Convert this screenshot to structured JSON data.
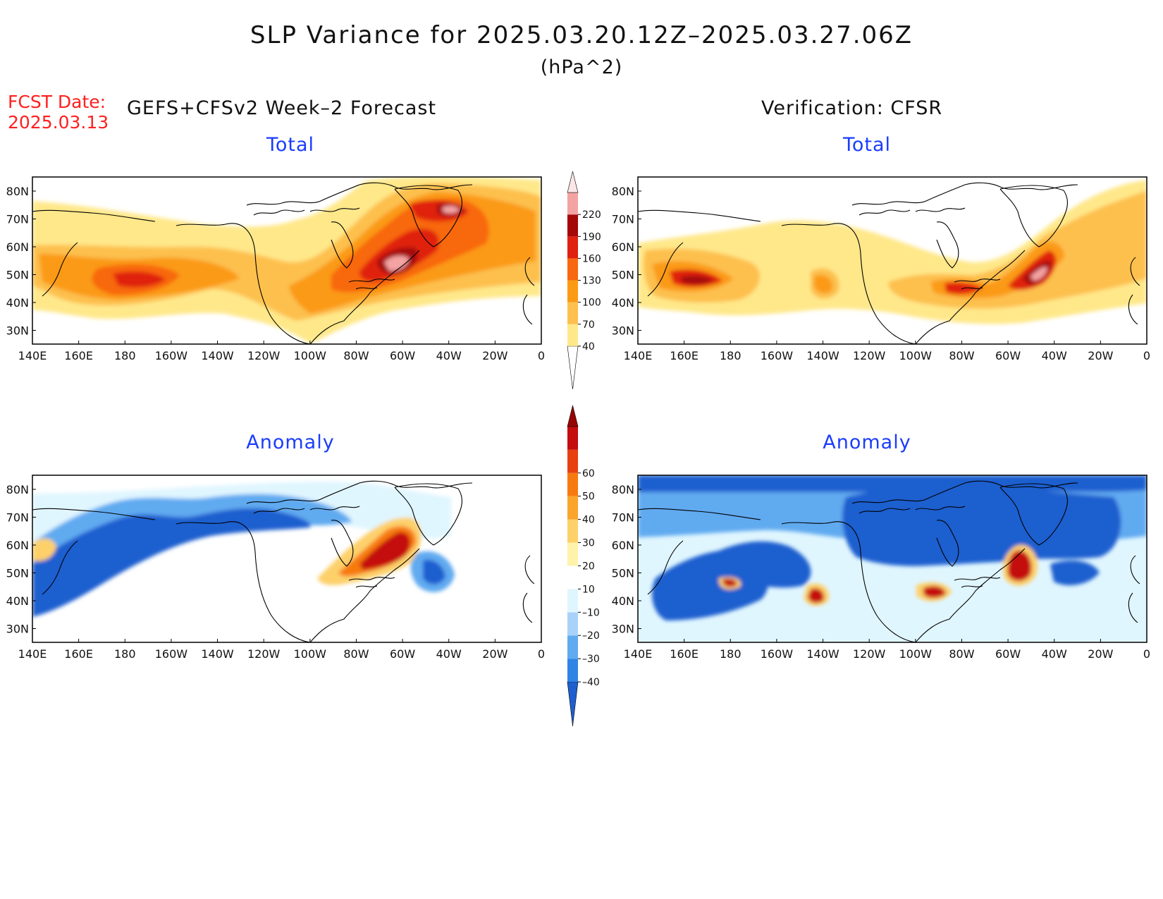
{
  "title": "SLP Variance for 2025.03.20.12Z–2025.03.27.06Z",
  "units": "(hPa^2)",
  "fcst_label": "FCST Date:",
  "fcst_date": "2025.03.13",
  "left_header": "GEFS+CFSv2 Week–2 Forecast",
  "right_header": "Verification: CFSR",
  "panels": {
    "forecast_total": {
      "title": "Total"
    },
    "verification_total": {
      "title": "Total"
    },
    "forecast_anomaly": {
      "title": "Anomaly"
    },
    "verification_anomaly": {
      "title": "Anomaly"
    }
  },
  "lat_labels": [
    "80N",
    "70N",
    "60N",
    "50N",
    "40N",
    "30N"
  ],
  "lon_labels": [
    "140E",
    "160E",
    "180",
    "160W",
    "140W",
    "120W",
    "100W",
    "80W",
    "60W",
    "40W",
    "20W",
    "0"
  ],
  "total_colorbar": {
    "levels": [
      "40",
      "70",
      "100",
      "130",
      "160",
      "190",
      "220"
    ],
    "colors": [
      "#ffffff",
      "#ffe88a",
      "#fdc04e",
      "#fb9a14",
      "#f86810",
      "#e02010",
      "#a50808",
      "#f4a3a3",
      "#fde6e6"
    ]
  },
  "anomaly_colorbar": {
    "levels": [
      "–40",
      "–30",
      "–20",
      "–10",
      "10",
      "20",
      "30",
      "40",
      "50",
      "60"
    ],
    "colors": [
      "#1f5fcf",
      "#2f84e6",
      "#60aaf0",
      "#a8d2fa",
      "#e0f6ff",
      "#ffffff",
      "#fff2aa",
      "#fdd06a",
      "#fba52d",
      "#f77a10",
      "#e84010",
      "#c40d0d",
      "#960404"
    ]
  }
}
